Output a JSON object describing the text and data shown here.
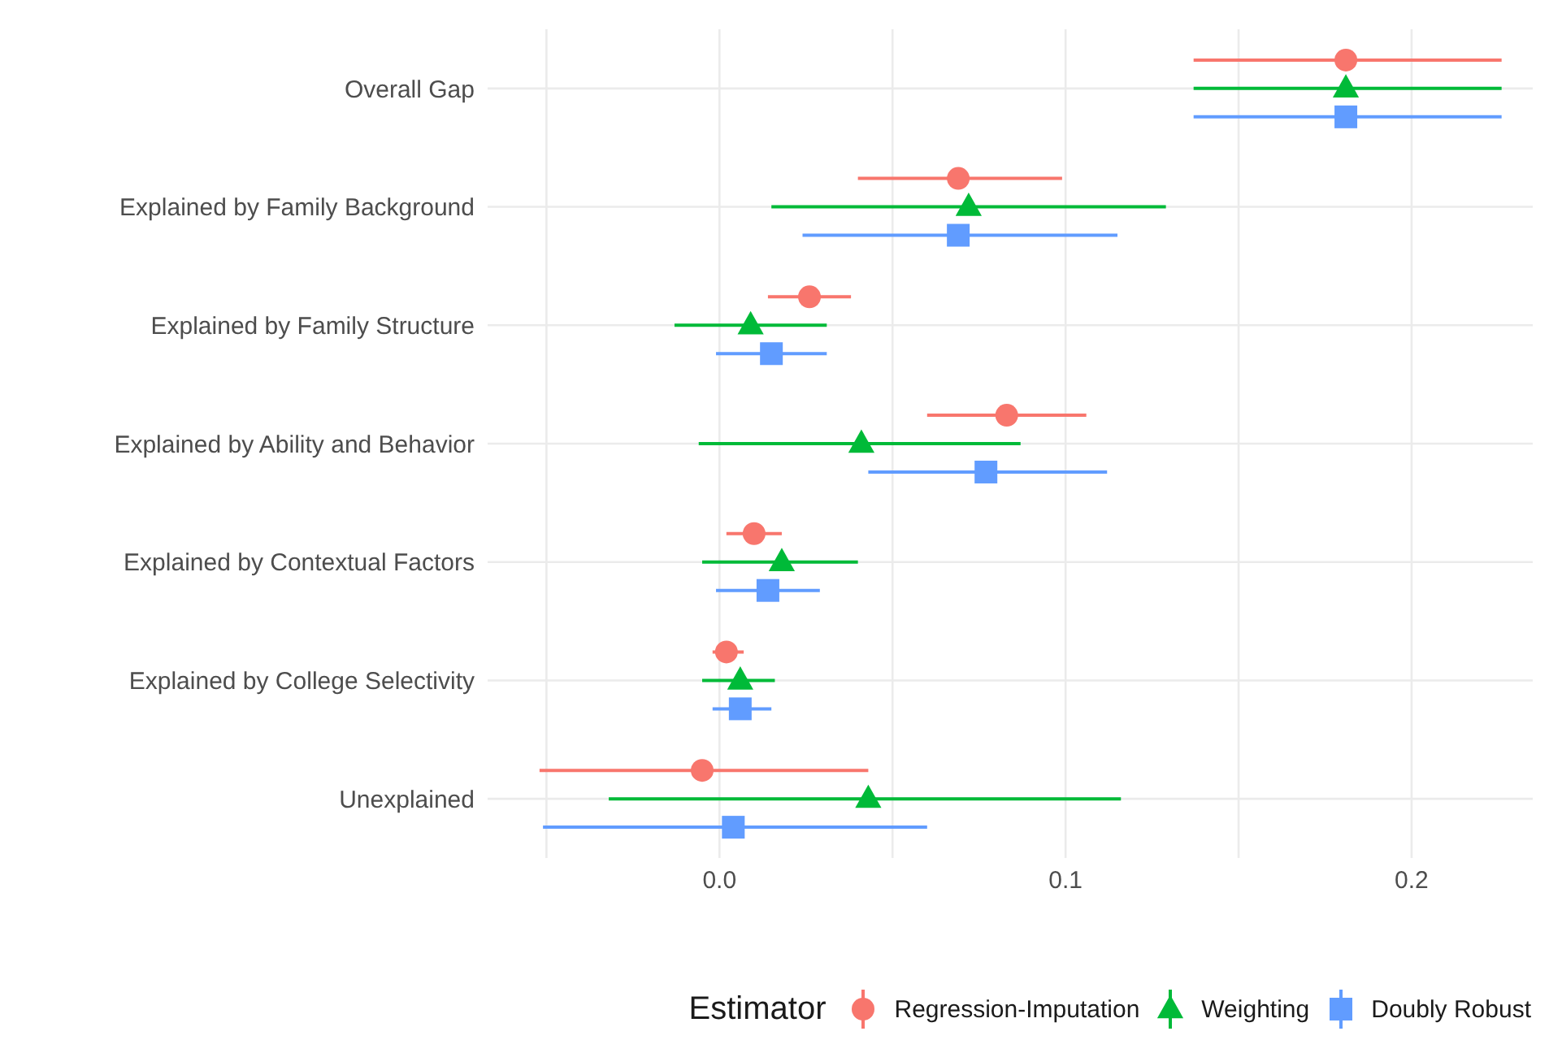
{
  "chart_data": {
    "type": "scatter",
    "orientation": "horizontal",
    "categories": [
      "Overall Gap",
      "Explained by Family Background",
      "Explained by Family Structure",
      "Explained by Ability and Behavior",
      "Explained by Contextual Factors",
      "Explained by College Selectivity",
      "Unexplained"
    ],
    "series": [
      {
        "name": "Regression-Imputation",
        "color": "#f8766d",
        "marker": "circle",
        "values": [
          0.181,
          0.069,
          0.026,
          0.083,
          0.01,
          0.002,
          -0.005
        ],
        "errors": [
          [
            0.137,
            0.226
          ],
          [
            0.04,
            0.099
          ],
          [
            0.014,
            0.038
          ],
          [
            0.06,
            0.106
          ],
          [
            0.002,
            0.018
          ],
          [
            -0.002,
            0.007
          ],
          [
            -0.052,
            0.043
          ]
        ]
      },
      {
        "name": "Weighting",
        "color": "#00ba38",
        "marker": "triangle",
        "values": [
          0.181,
          0.072,
          0.009,
          0.041,
          0.018,
          0.006,
          0.043
        ],
        "errors": [
          [
            0.137,
            0.226
          ],
          [
            0.015,
            0.129
          ],
          [
            -0.013,
            0.031
          ],
          [
            -0.006,
            0.087
          ],
          [
            -0.005,
            0.04
          ],
          [
            -0.005,
            0.016
          ],
          [
            -0.032,
            0.116
          ]
        ]
      },
      {
        "name": "Doubly Robust",
        "color": "#619cff",
        "marker": "square",
        "values": [
          0.181,
          0.069,
          0.015,
          0.077,
          0.014,
          0.006,
          0.004
        ],
        "errors": [
          [
            0.137,
            0.226
          ],
          [
            0.024,
            0.115
          ],
          [
            -0.001,
            0.031
          ],
          [
            0.043,
            0.112
          ],
          [
            -0.001,
            0.029
          ],
          [
            -0.002,
            0.015
          ],
          [
            -0.051,
            0.06
          ]
        ]
      }
    ],
    "xlim": [
      -0.067,
      0.235
    ],
    "xticks": [
      {
        "value": -0.05,
        "label": null
      },
      {
        "value": 0,
        "label": "0.0"
      },
      {
        "value": 0.05,
        "label": null
      },
      {
        "value": 0.1,
        "label": "0.1"
      },
      {
        "value": 0.15,
        "label": null
      },
      {
        "value": 0.2,
        "label": "0.2"
      }
    ],
    "grid": true,
    "legend": "bottom",
    "legend_title": "Estimator"
  }
}
